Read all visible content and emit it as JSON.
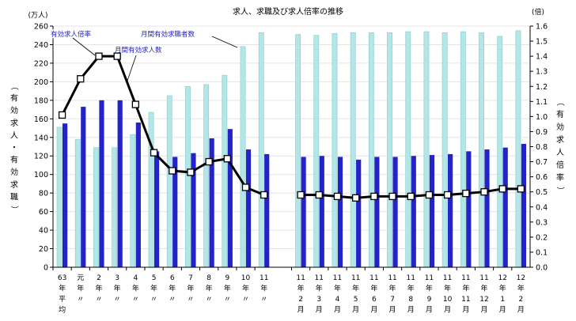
{
  "chart_data": {
    "type": "bar",
    "title": "求人、求職及び求人倍率の推移",
    "left_unit": "(万人)",
    "right_unit": "(倍)",
    "left_axis_label": "（有効求人・有効求職）",
    "right_axis_label": "（有効求人倍率）",
    "ylim_left": [
      0,
      260
    ],
    "ylim_right": [
      0,
      1.6
    ],
    "left_ticks": [
      0,
      20,
      40,
      60,
      80,
      100,
      120,
      140,
      160,
      180,
      200,
      220,
      240,
      260
    ],
    "right_ticks": [
      "0.0",
      "0.1",
      "0.2",
      "0.3",
      "0.4",
      "0.5",
      "0.6",
      "0.7",
      "0.8",
      "0.9",
      "1.0",
      "1.1",
      "1.2",
      "1.3",
      "1.4",
      "1.5",
      "1.6"
    ],
    "categories": [
      [
        "63",
        "年",
        "平",
        "均"
      ],
      [
        "元",
        "年",
        "〃"
      ],
      [
        "2",
        "年",
        "〃"
      ],
      [
        "3",
        "年",
        "〃"
      ],
      [
        "4",
        "年",
        "〃"
      ],
      [
        "5",
        "年",
        "〃"
      ],
      [
        "6",
        "年",
        "〃"
      ],
      [
        "7",
        "年",
        "〃"
      ],
      [
        "8",
        "年",
        "〃"
      ],
      [
        "9",
        "年",
        "〃"
      ],
      [
        "10",
        "年",
        "〃"
      ],
      [
        "11",
        "年",
        "〃"
      ],
      null,
      [
        "11",
        "年",
        "2",
        "月"
      ],
      [
        "11",
        "年",
        "3",
        "月"
      ],
      [
        "11",
        "年",
        "4",
        "月"
      ],
      [
        "11",
        "年",
        "5",
        "月"
      ],
      [
        "11",
        "年",
        "6",
        "月"
      ],
      [
        "11",
        "年",
        "7",
        "月"
      ],
      [
        "11",
        "年",
        "8",
        "月"
      ],
      [
        "11",
        "年",
        "9",
        "月"
      ],
      [
        "11",
        "年",
        "10",
        "月"
      ],
      [
        "11",
        "年",
        "11",
        "月"
      ],
      [
        "11",
        "年",
        "12",
        "月"
      ],
      [
        "12",
        "年",
        "1",
        "月"
      ],
      [
        "12",
        "年",
        "2",
        "月"
      ]
    ],
    "series": [
      {
        "name": "月間有効求職者数",
        "kind": "bar",
        "axis": "left",
        "color": "#b3e6e6",
        "values": [
          151,
          138,
          129,
          129,
          143,
          167,
          185,
          195,
          197,
          207,
          238,
          253,
          null,
          251,
          250,
          252,
          253,
          253,
          253,
          254,
          254,
          253,
          254,
          253,
          249,
          255
        ]
      },
      {
        "name": "月間有効求人数",
        "kind": "bar",
        "axis": "left",
        "color": "#2323c8",
        "values": [
          155,
          173,
          180,
          180,
          156,
          125,
          119,
          123,
          139,
          149,
          127,
          122,
          null,
          119,
          120,
          119,
          116,
          119,
          119,
          120,
          121,
          122,
          125,
          127,
          129,
          133
        ]
      },
      {
        "name": "有効求人倍率",
        "kind": "line",
        "axis": "right",
        "color": "#000000",
        "values": [
          1.01,
          1.25,
          1.4,
          1.4,
          1.08,
          0.76,
          0.64,
          0.63,
          0.7,
          0.72,
          0.53,
          0.48,
          null,
          0.48,
          0.48,
          0.47,
          0.46,
          0.47,
          0.47,
          0.47,
          0.48,
          0.48,
          0.49,
          0.5,
          0.52,
          0.52
        ]
      }
    ],
    "annotations": {
      "ratio_label": "有効求人倍率",
      "openings_label": "月間有効求人数",
      "seekers_label": "月間有効求職者数"
    }
  }
}
